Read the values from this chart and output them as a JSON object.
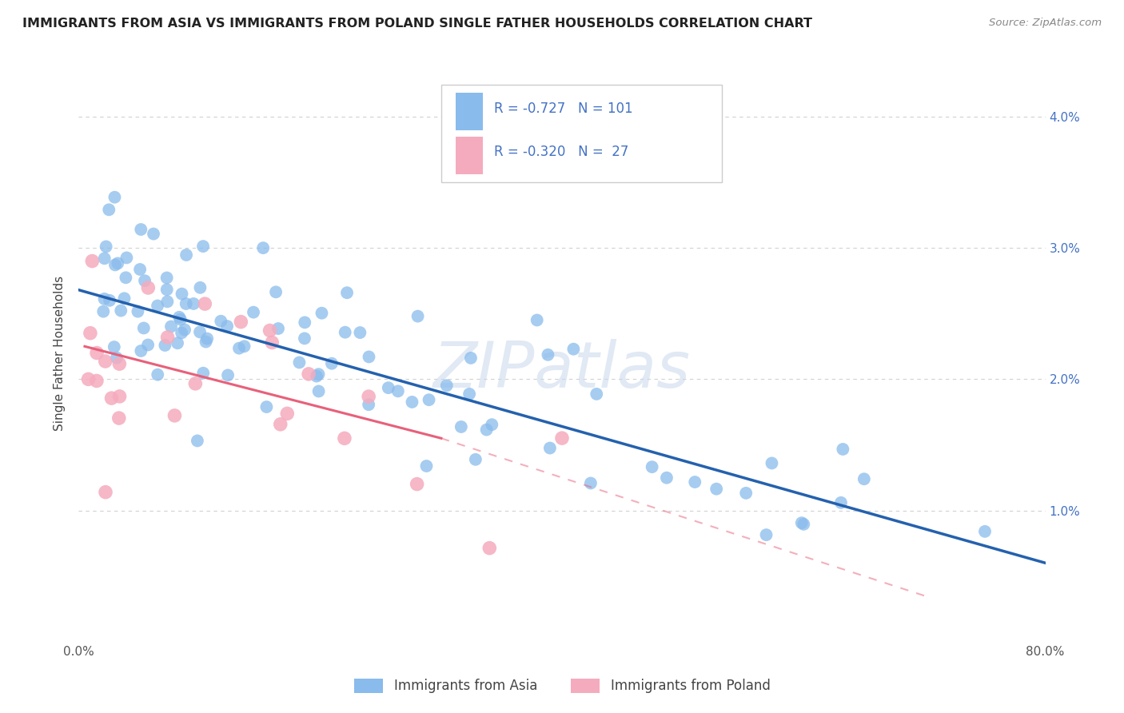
{
  "title": "IMMIGRANTS FROM ASIA VS IMMIGRANTS FROM POLAND SINGLE FATHER HOUSEHOLDS CORRELATION CHART",
  "source": "Source: ZipAtlas.com",
  "ylabel": "Single Father Households",
  "legend_blue_label": "Immigrants from Asia",
  "legend_pink_label": "Immigrants from Poland",
  "corr_blue_R": "-0.727",
  "corr_blue_N": "101",
  "corr_pink_R": "-0.320",
  "corr_pink_N": "27",
  "blue_color": "#89BBEC",
  "pink_color": "#F5ABBE",
  "blue_line_color": "#2461AE",
  "pink_line_color": "#E8607A",
  "watermark_text": "ZIPatlas",
  "watermark_color": "#C8D8EC",
  "background_color": "#FFFFFF",
  "grid_color": "#CCCCCC",
  "text_color": "#4472C4",
  "xlim": [
    0.0,
    0.8
  ],
  "ylim": [
    0.0,
    0.044
  ],
  "blue_line_x0": 0.0,
  "blue_line_y0": 0.0268,
  "blue_line_x1": 0.8,
  "blue_line_y1": 0.006,
  "pink_line_x0": 0.005,
  "pink_line_y0": 0.0225,
  "pink_line_x1_solid": 0.3,
  "pink_line_y1_solid": 0.0155,
  "pink_line_x1_dash": 0.7,
  "pink_line_y1_dash": 0.0035,
  "yticks": [
    0.0,
    0.01,
    0.02,
    0.03,
    0.04
  ],
  "ytick_labels_right": [
    "",
    "1.0%",
    "2.0%",
    "3.0%",
    "4.0%"
  ]
}
